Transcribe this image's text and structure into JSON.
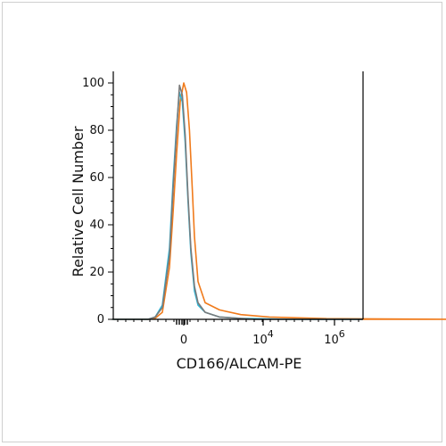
{
  "chart_data": {
    "type": "line",
    "title": "",
    "xlabel": "CD166/ALCAM-PE",
    "ylabel": "Relative Cell Number",
    "scale": "biexponential",
    "xlim": [
      -10,
      4000000
    ],
    "ylim": [
      0,
      100
    ],
    "grid": false,
    "legend": "none",
    "y_ticks": [
      {
        "value": 0,
        "label": "0"
      },
      {
        "value": 20,
        "label": "20"
      },
      {
        "value": 40,
        "label": "40"
      },
      {
        "value": 60,
        "label": "60"
      },
      {
        "value": 80,
        "label": "80"
      },
      {
        "value": 100,
        "label": "100"
      }
    ],
    "x_ticks": [
      {
        "value": 0,
        "label_base": "0",
        "label_exp": ""
      },
      {
        "value": 10000,
        "label_base": "10",
        "label_exp": "4"
      },
      {
        "value": 1000000,
        "label_base": "10",
        "label_exp": "6"
      }
    ],
    "series": [
      {
        "color": "#f07b1c",
        "x": [
          -10,
          -5,
          -4,
          -3,
          -2,
          -1.5,
          -1,
          -0.5,
          0,
          0.4,
          0.8,
          1.2,
          1.5,
          2,
          3,
          5,
          8,
          12,
          20,
          40
        ],
        "y": [
          0,
          0,
          0.5,
          3,
          22,
          45,
          70,
          92,
          100,
          96,
          80,
          55,
          35,
          16,
          7,
          4,
          2,
          1,
          0.3,
          0
        ]
      },
      {
        "color": "#2bb6d8",
        "x": [
          -10,
          -5,
          -4,
          -3,
          -2,
          -1.5,
          -1,
          -0.6,
          -0.2,
          0.2,
          0.6,
          1,
          1.5,
          2,
          3,
          5,
          8,
          15
        ],
        "y": [
          0,
          0,
          1,
          6,
          30,
          58,
          82,
          96,
          92,
          75,
          50,
          28,
          12,
          6,
          3,
          1,
          0.4,
          0
        ]
      },
      {
        "color": "#7a7a7a",
        "x": [
          -10,
          -5,
          -4,
          -3,
          -2,
          -1.5,
          -1,
          -0.6,
          -0.2,
          0.2,
          0.6,
          1,
          1.5,
          2,
          3,
          5,
          10
        ],
        "y": [
          0,
          0,
          1,
          5,
          27,
          55,
          80,
          99,
          95,
          78,
          52,
          30,
          14,
          7,
          3,
          1,
          0
        ]
      }
    ]
  }
}
